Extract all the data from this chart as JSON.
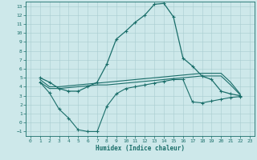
{
  "background_color": "#cde8ea",
  "grid_color": "#a8cdd0",
  "line_color": "#1a6e6a",
  "xlabel": "Humidex (Indice chaleur)",
  "xlim": [
    -0.5,
    23.5
  ],
  "ylim": [
    -1.5,
    13.5
  ],
  "xticks": [
    0,
    1,
    2,
    3,
    4,
    5,
    6,
    7,
    8,
    9,
    10,
    11,
    12,
    13,
    14,
    15,
    16,
    17,
    18,
    19,
    20,
    21,
    22,
    23
  ],
  "yticks": [
    -1,
    0,
    1,
    2,
    3,
    4,
    5,
    6,
    7,
    8,
    9,
    10,
    11,
    12,
    13
  ],
  "line1_x": [
    1,
    2,
    3,
    4,
    5,
    6,
    7,
    8,
    9,
    10,
    11,
    12,
    13,
    14,
    15,
    16,
    17,
    18,
    19,
    20,
    21,
    22
  ],
  "line1_y": [
    5.0,
    4.5,
    3.8,
    3.5,
    3.5,
    4.0,
    4.5,
    6.5,
    9.3,
    10.2,
    11.2,
    12.0,
    13.2,
    13.3,
    11.8,
    7.2,
    6.3,
    5.2,
    4.8,
    3.5,
    3.2,
    3.0
  ],
  "line2_x": [
    1,
    2,
    3,
    4,
    5,
    6,
    7,
    8,
    9,
    10,
    11,
    12,
    13,
    14,
    15,
    16,
    17,
    18,
    19,
    20,
    21,
    22
  ],
  "line2_y": [
    4.8,
    4.0,
    4.0,
    4.1,
    4.2,
    4.3,
    4.4,
    4.5,
    4.6,
    4.7,
    4.8,
    4.9,
    5.0,
    5.1,
    5.2,
    5.3,
    5.4,
    5.5,
    5.5,
    5.5,
    4.5,
    3.2
  ],
  "line3_x": [
    1,
    2,
    3,
    4,
    5,
    6,
    7,
    8,
    9,
    10,
    11,
    12,
    13,
    14,
    15,
    16,
    17,
    18,
    19,
    20,
    21,
    22
  ],
  "line3_y": [
    4.5,
    3.8,
    3.8,
    3.9,
    4.0,
    4.1,
    4.2,
    4.2,
    4.3,
    4.4,
    4.5,
    4.6,
    4.7,
    4.8,
    4.9,
    5.0,
    5.1,
    5.2,
    5.2,
    5.2,
    4.2,
    3.1
  ],
  "line4_x": [
    1,
    2,
    3,
    4,
    5,
    6,
    7,
    8,
    9,
    10,
    11,
    12,
    13,
    14,
    15,
    16,
    17,
    18,
    19,
    20,
    21,
    22
  ],
  "line4_y": [
    4.5,
    3.3,
    1.5,
    0.5,
    -0.8,
    -1.0,
    -1.0,
    1.8,
    3.2,
    3.8,
    4.0,
    4.2,
    4.4,
    4.6,
    4.8,
    4.8,
    2.3,
    2.2,
    2.4,
    2.6,
    2.8,
    2.9
  ]
}
